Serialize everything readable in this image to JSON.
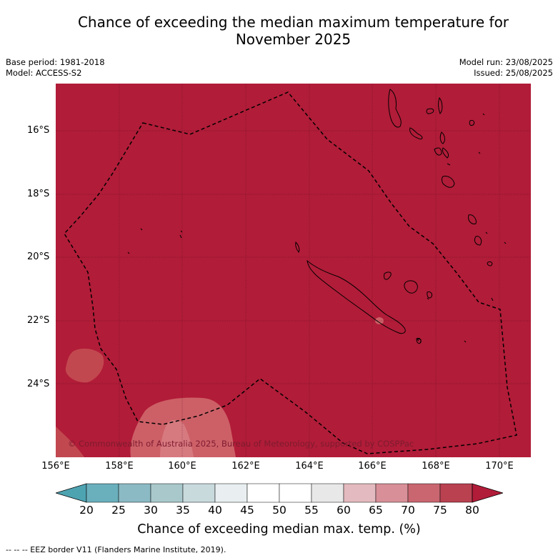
{
  "title_line1": "Chance of exceeding the median maximum temperature for",
  "title_line2": "November 2025",
  "base_period": "Base period: 1981-2018",
  "model": "Model: ACCESS-S2",
  "model_run": "Model run: 23/08/2025",
  "issued": "Issued: 25/08/2025",
  "map": {
    "background_color": "#b11c38",
    "lat_labels": [
      "16°S",
      "18°S",
      "20°S",
      "22°S",
      "24°S"
    ],
    "lon_labels": [
      "156°E",
      "158°E",
      "160°E",
      "162°E",
      "164°E",
      "166°E",
      "168°E",
      "170°E"
    ],
    "copyright": "© Commonwealth of Australia 2025, Bureau of Meteorology, supported by COSPPac",
    "eez_border": "dashed",
    "regions": [
      {
        "name": "70-75 patch west",
        "color": "#c2484f"
      },
      {
        "name": "70-75 patch southwest",
        "color": "#c2484f"
      },
      {
        "name": "65-70 patch south",
        "color": "#cd6067"
      },
      {
        "name": "New Caledonia",
        "outline": true
      },
      {
        "name": "Vanuatu",
        "outline": true
      }
    ]
  },
  "colorbar": {
    "ticks": [
      "20",
      "25",
      "30",
      "35",
      "40",
      "45",
      "50",
      "55",
      "60",
      "65",
      "70",
      "75",
      "80"
    ],
    "low_extend_color": "#4ea3b1",
    "high_extend_color": "#b11c38",
    "colors": [
      "#6aafbc",
      "#8bbac4",
      "#a9c8cc",
      "#c9dadd",
      "#e9eff1",
      "#ffffff",
      "#ffffff",
      "#e8e8e8",
      "#e3babf",
      "#d88f97",
      "#c96670",
      "#b94150"
    ],
    "label": "Chance of exceeding median max. temp. (%)"
  },
  "legend": "-- -- -- EEZ border V11 (Flanders Marine Institute, 2019)."
}
